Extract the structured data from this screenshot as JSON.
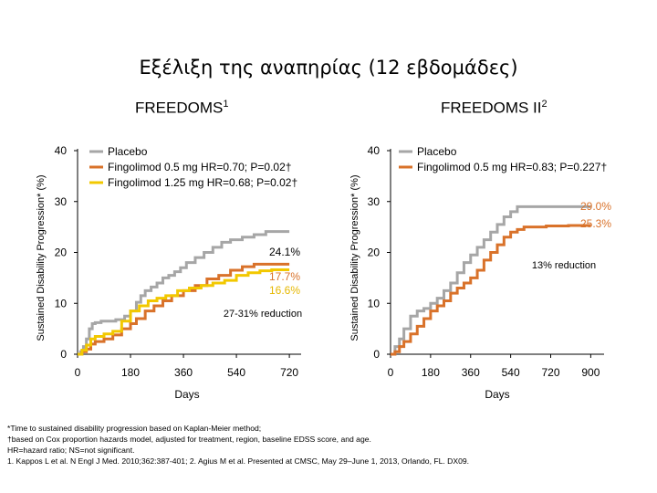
{
  "title": "Εξέλιξη της αναπηρίας (12 εβδομάδες)",
  "panels": [
    {
      "title": "FREEDOMS",
      "title_sup": "1",
      "ylabel": "Sustained Disability Progression* (%)",
      "xlabel": "Days",
      "yticks": [
        "0",
        "10",
        "20",
        "30",
        "40"
      ],
      "xticks": [
        "0",
        "180",
        "360",
        "540",
        "720"
      ],
      "legend": [
        {
          "label": "Placebo",
          "color": "#a6a6a6"
        },
        {
          "label": "Fingolimod 0.5 mg HR=0.70; P=0.02†",
          "color": "#d9722a"
        },
        {
          "label": "Fingolimod 1.25 mg HR=0.68; P=0.02†",
          "color": "#f2c800"
        }
      ],
      "end_labels": [
        {
          "text": "24.1%",
          "color": "#000000"
        },
        {
          "text": "17.7%",
          "color": "#d9722a"
        },
        {
          "text": "16.6%",
          "color": "#e6b800"
        }
      ],
      "annotation": "27-31%  reduction"
    },
    {
      "title": "FREEDOMS II",
      "title_sup": "2",
      "ylabel": "Sustained Disability Progression* (%)",
      "xlabel": "Days",
      "yticks": [
        "0",
        "10",
        "20",
        "30",
        "40"
      ],
      "xticks": [
        "0",
        "180",
        "360",
        "540",
        "720",
        "900"
      ],
      "legend": [
        {
          "label": "Placebo",
          "color": "#a6a6a6"
        },
        {
          "label": "Fingolimod 0.5 mg HR=0.83; P=0.227†",
          "color": "#d9722a"
        }
      ],
      "end_labels": [
        {
          "text": "29.0%",
          "color": "#d9722a"
        },
        {
          "text": "25.3%",
          "color": "#d9722a"
        }
      ],
      "annotation": "13%  reduction"
    }
  ],
  "footnotes": [
    "*Time to sustained disability progression based on Kaplan-Meier method;",
    "†based on Cox proportion hazards model, adjusted for treatment, region, baseline EDSS score, and age.",
    "HR=hazard ratio; NS=not significant.",
    "1. Kappos L et al. N Engl J Med. 2010;362:387-401; 2. Agius M et al. Presented at CMSC, May 29–June 1, 2013, Orlando, FL. DX09."
  ],
  "chart_data": [
    {
      "type": "line",
      "title": "FREEDOMS",
      "xlabel": "Days",
      "ylabel": "Sustained Disability Progression* (%)",
      "xlim": [
        0,
        760
      ],
      "ylim": [
        0,
        40
      ],
      "series": [
        {
          "name": "Placebo",
          "color": "#a6a6a6",
          "x": [
            0,
            10,
            20,
            30,
            40,
            50,
            60,
            80,
            100,
            130,
            160,
            180,
            200,
            215,
            230,
            250,
            270,
            290,
            310,
            330,
            350,
            370,
            400,
            430,
            460,
            490,
            520,
            560,
            600,
            640,
            680,
            720
          ],
          "y": [
            0,
            0.5,
            1.5,
            3.0,
            5.0,
            6.0,
            6.2,
            6.5,
            6.5,
            6.8,
            7.5,
            8.5,
            10.2,
            11.5,
            12.5,
            13.2,
            14.0,
            15.0,
            15.5,
            16.2,
            17.0,
            18.0,
            19.0,
            20.0,
            21.0,
            22.0,
            22.5,
            23.0,
            23.5,
            24.1,
            24.1,
            24.1
          ]
        },
        {
          "name": "Fingolimod 0.5 mg HR=0.70; P=0.02†",
          "color": "#d9722a",
          "x": [
            0,
            15,
            30,
            45,
            60,
            90,
            120,
            150,
            180,
            200,
            230,
            260,
            290,
            320,
            360,
            400,
            440,
            480,
            520,
            560,
            600,
            640,
            680,
            720
          ],
          "y": [
            0,
            0.5,
            1.0,
            2.0,
            2.5,
            3.0,
            3.8,
            5.0,
            6.0,
            7.0,
            8.5,
            9.5,
            10.5,
            11.5,
            12.5,
            13.5,
            14.8,
            15.5,
            16.5,
            17.2,
            17.7,
            17.7,
            17.7,
            17.7
          ]
        },
        {
          "name": "Fingolimod 1.25 mg HR=0.68; P=0.02†",
          "color": "#f2c800",
          "x": [
            0,
            15,
            30,
            45,
            60,
            90,
            120,
            150,
            180,
            210,
            240,
            270,
            300,
            340,
            380,
            420,
            460,
            500,
            540,
            580,
            620,
            660,
            720
          ],
          "y": [
            0,
            0.8,
            1.8,
            3.0,
            3.5,
            4.0,
            4.5,
            6.5,
            8.5,
            9.5,
            10.5,
            11.0,
            11.5,
            12.5,
            13.0,
            13.5,
            14.0,
            14.5,
            15.5,
            16.0,
            16.4,
            16.6,
            16.6
          ]
        }
      ]
    },
    {
      "type": "line",
      "title": "FREEDOMS II",
      "xlabel": "Days",
      "ylabel": "Sustained Disability Progression* (%)",
      "xlim": [
        0,
        960
      ],
      "ylim": [
        0,
        40
      ],
      "series": [
        {
          "name": "Placebo",
          "color": "#a6a6a6",
          "x": [
            0,
            20,
            40,
            60,
            90,
            120,
            150,
            180,
            210,
            240,
            270,
            300,
            330,
            360,
            390,
            420,
            450,
            480,
            510,
            540,
            570,
            600,
            700,
            800,
            860,
            900
          ],
          "y": [
            0,
            1.5,
            3.0,
            5.0,
            7.5,
            8.5,
            9.0,
            10.0,
            11.0,
            12.5,
            14.0,
            16.0,
            18.0,
            19.5,
            21.0,
            22.5,
            24.0,
            25.5,
            27.0,
            28.0,
            29.0,
            29.0,
            29.0,
            29.0,
            29.0,
            29.0
          ]
        },
        {
          "name": "Fingolimod 0.5 mg HR=0.83; P=0.227†",
          "color": "#d9722a",
          "x": [
            0,
            20,
            40,
            60,
            90,
            120,
            150,
            180,
            210,
            240,
            270,
            300,
            330,
            360,
            390,
            420,
            450,
            480,
            510,
            540,
            570,
            600,
            700,
            800,
            860,
            900
          ],
          "y": [
            0,
            0.5,
            1.5,
            2.5,
            4.0,
            5.5,
            7.0,
            8.5,
            9.5,
            10.5,
            12.0,
            13.0,
            14.0,
            15.0,
            16.5,
            18.5,
            20.0,
            21.5,
            23.0,
            24.0,
            24.5,
            25.0,
            25.2,
            25.3,
            25.3,
            25.3
          ]
        }
      ]
    }
  ]
}
